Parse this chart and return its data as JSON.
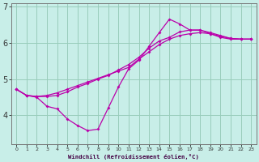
{
  "xlabel": "Windchill (Refroidissement éolien,°C)",
  "background_color": "#c8eee8",
  "grid_color": "#99ccbb",
  "line_color": "#bb00aa",
  "xlim": [
    -0.5,
    23.5
  ],
  "ylim": [
    3.2,
    7.1
  ],
  "yticks": [
    4,
    5,
    6,
    7
  ],
  "xticks": [
    0,
    1,
    2,
    3,
    4,
    5,
    6,
    7,
    8,
    9,
    10,
    11,
    12,
    13,
    14,
    15,
    16,
    17,
    18,
    19,
    20,
    21,
    22,
    23
  ],
  "series1": [
    [
      0,
      4.72
    ],
    [
      1,
      4.55
    ],
    [
      2,
      4.52
    ],
    [
      3,
      4.55
    ],
    [
      4,
      4.62
    ],
    [
      5,
      4.72
    ],
    [
      6,
      4.82
    ],
    [
      7,
      4.92
    ],
    [
      8,
      5.02
    ],
    [
      9,
      5.12
    ],
    [
      10,
      5.22
    ],
    [
      11,
      5.32
    ],
    [
      12,
      5.55
    ],
    [
      13,
      5.75
    ],
    [
      14,
      5.95
    ],
    [
      15,
      6.1
    ],
    [
      16,
      6.2
    ],
    [
      17,
      6.25
    ],
    [
      18,
      6.28
    ],
    [
      19,
      6.25
    ],
    [
      20,
      6.18
    ],
    [
      21,
      6.12
    ],
    [
      22,
      6.1
    ],
    [
      23,
      6.1
    ]
  ],
  "series2": [
    [
      0,
      4.72
    ],
    [
      1,
      4.55
    ],
    [
      2,
      4.52
    ],
    [
      3,
      4.52
    ],
    [
      4,
      4.55
    ],
    [
      5,
      4.65
    ],
    [
      6,
      4.78
    ],
    [
      7,
      4.88
    ],
    [
      8,
      5.0
    ],
    [
      9,
      5.1
    ],
    [
      10,
      5.25
    ],
    [
      11,
      5.4
    ],
    [
      12,
      5.6
    ],
    [
      13,
      5.85
    ],
    [
      14,
      6.05
    ],
    [
      15,
      6.15
    ],
    [
      16,
      6.3
    ],
    [
      17,
      6.35
    ],
    [
      18,
      6.35
    ],
    [
      19,
      6.28
    ],
    [
      20,
      6.2
    ],
    [
      21,
      6.12
    ],
    [
      22,
      6.1
    ],
    [
      23,
      6.1
    ]
  ],
  "series3": [
    [
      0,
      4.72
    ],
    [
      1,
      4.55
    ],
    [
      2,
      4.5
    ],
    [
      3,
      4.25
    ],
    [
      4,
      4.18
    ],
    [
      5,
      3.9
    ],
    [
      6,
      3.72
    ],
    [
      7,
      3.58
    ],
    [
      8,
      3.62
    ],
    [
      9,
      4.2
    ],
    [
      10,
      4.78
    ],
    [
      11,
      5.28
    ],
    [
      12,
      5.52
    ],
    [
      13,
      5.9
    ],
    [
      14,
      6.28
    ],
    [
      15,
      6.65
    ],
    [
      16,
      6.52
    ],
    [
      17,
      6.35
    ],
    [
      18,
      6.35
    ],
    [
      19,
      6.25
    ],
    [
      20,
      6.15
    ],
    [
      21,
      6.1
    ],
    [
      22,
      6.1
    ],
    [
      23,
      6.1
    ]
  ]
}
